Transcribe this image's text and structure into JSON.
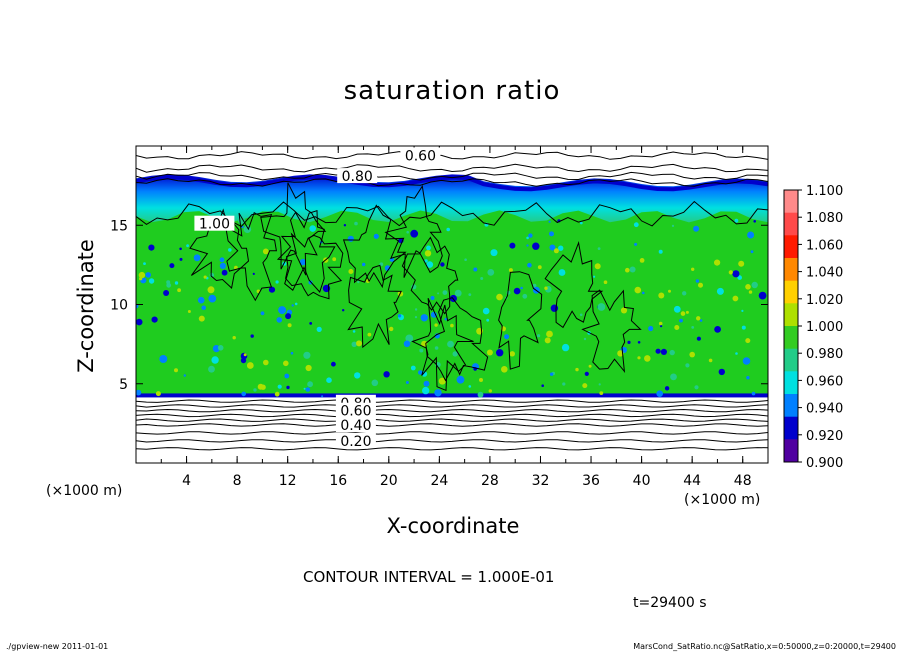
{
  "chart_data": {
    "type": "heatmap",
    "title": "saturation ratio",
    "xlabel": "X-coordinate",
    "ylabel": "Z-coordinate",
    "x_unit_left": "(×1000 m)",
    "x_unit_right": "(×1000 m)",
    "xlim": [
      0,
      50
    ],
    "ylim": [
      0,
      20
    ],
    "x_ticks": [
      4,
      8,
      12,
      16,
      20,
      24,
      28,
      32,
      36,
      40,
      44,
      48
    ],
    "x_tick_labels": [
      "4",
      "8",
      "12",
      "16",
      "20",
      "24",
      "28",
      "32",
      "36",
      "40",
      "44",
      "48"
    ],
    "y_ticks": [
      5,
      10,
      15
    ],
    "y_tick_labels": [
      "5",
      "10",
      "15"
    ],
    "colorbar": {
      "min": 0.9,
      "max": 1.1,
      "levels": [
        1.1,
        1.08,
        1.06,
        1.04,
        1.02,
        1.0,
        0.98,
        0.96,
        0.94,
        0.92,
        0.9
      ],
      "labels": [
        "1.100",
        "1.080",
        "1.060",
        "1.040",
        "1.020",
        "1.000",
        "0.980",
        "0.960",
        "0.940",
        "0.920",
        "0.900"
      ],
      "colors": [
        "#ff8a8a",
        "#ff4a4a",
        "#ff1a00",
        "#ff8800",
        "#ffd000",
        "#aee000",
        "#33cc22",
        "#22cc88",
        "#00e0e0",
        "#0080ff",
        "#0000cc",
        "#5000a0"
      ]
    },
    "contour_labels": [
      {
        "text": "0.60",
        "x": 22.5,
        "z": 19.4
      },
      {
        "text": "0.80",
        "x": 17.5,
        "z": 18.1
      },
      {
        "text": "1.00",
        "x": 6.2,
        "z": 15.1
      },
      {
        "text": "0.80",
        "x": 17.4,
        "z": 3.8
      },
      {
        "text": "0.60",
        "x": 17.4,
        "z": 3.3
      },
      {
        "text": "0.40",
        "x": 17.4,
        "z": 2.4
      },
      {
        "text": "0.20",
        "x": 17.4,
        "z": 1.4
      }
    ],
    "regions": {
      "cloud_top_z": 17.2,
      "cloud_base_z": 4.2,
      "upper_contours_z": [
        19.4,
        18.6,
        18.1,
        17.7
      ],
      "lower_contours_z": [
        3.9,
        3.6,
        3.3,
        3.0,
        2.7,
        2.4,
        1.9,
        1.4,
        0.9
      ]
    }
  },
  "contour_interval": "CONTOUR INTERVAL = 1.000E-01",
  "time_label": "t=29400 s",
  "footer": {
    "left": "./gpview-new   2011-01-01",
    "right": "MarsCond_SatRatio.nc@SatRatio,x=0:50000,z=0:20000,t=29400"
  }
}
